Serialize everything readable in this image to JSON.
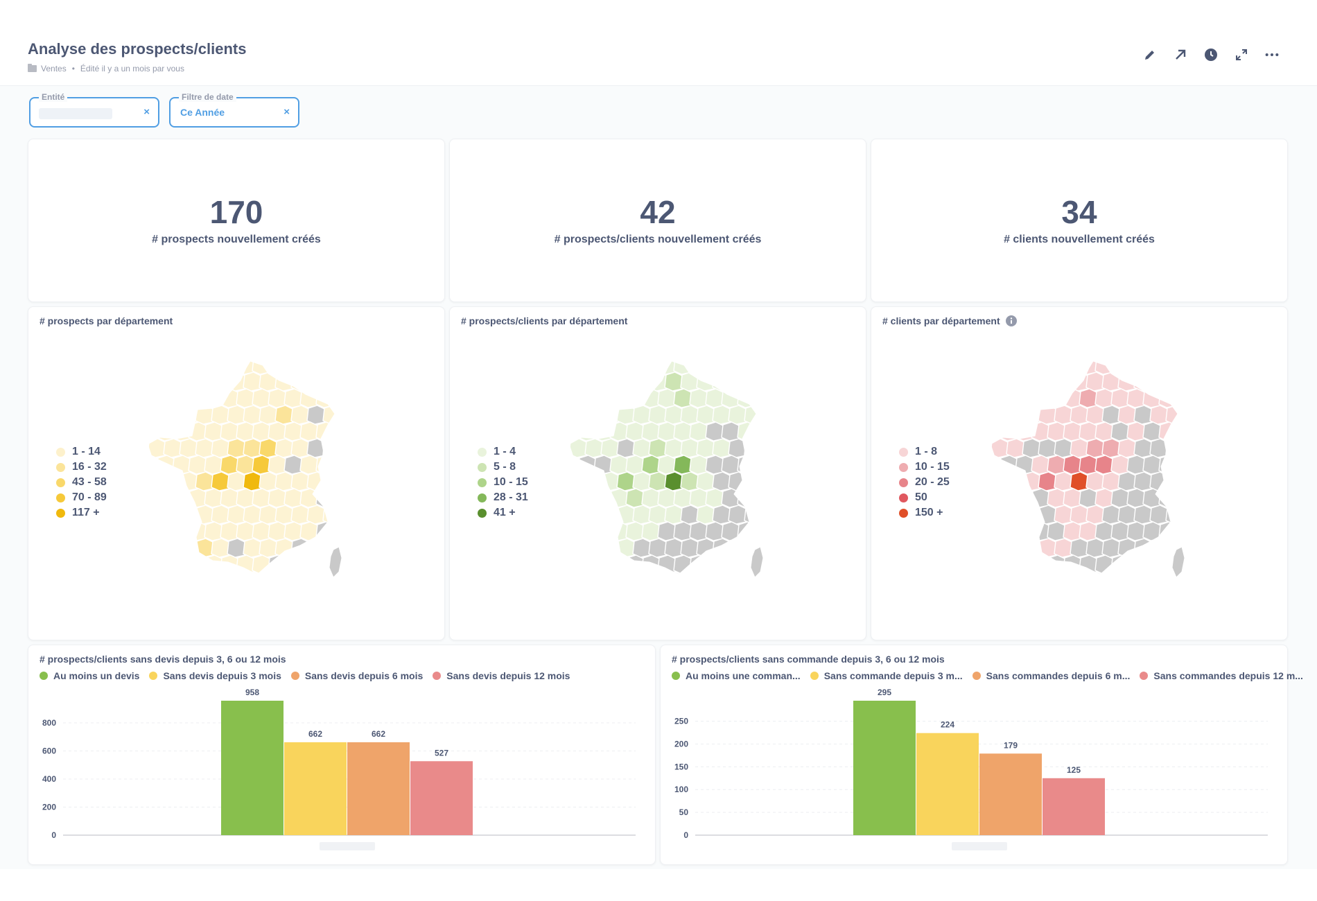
{
  "header": {
    "title": "Analyse des prospects/clients",
    "collection": "Ventes",
    "edited": "Édité il y a un mois par vous"
  },
  "toolbar": {
    "icons": [
      "pencil-icon",
      "share-arrow-icon",
      "clock-icon",
      "fullscreen-icon",
      "more-icon"
    ]
  },
  "filters": {
    "entity": {
      "label": "Entité",
      "value": ""
    },
    "date": {
      "label": "Filtre de date",
      "value": "Ce Année"
    }
  },
  "scalars": [
    {
      "value": "170",
      "label": "# prospects nouvellement créés"
    },
    {
      "value": "42",
      "label": "# prospects/clients nouvellement créés"
    },
    {
      "value": "34",
      "label": "# clients nouvellement créés"
    }
  ],
  "maps": [
    {
      "title": "# prospects par département",
      "legend": [
        {
          "label": "1 - 14",
          "color": "#fdf1cc"
        },
        {
          "label": "16 - 32",
          "color": "#fbe49a"
        },
        {
          "label": "43 - 58",
          "color": "#f9d86a"
        },
        {
          "label": "70 - 89",
          "color": "#f6c93a"
        },
        {
          "label": "117 +",
          "color": "#f0b90d"
        }
      ],
      "base_color": "#fdf3d3"
    },
    {
      "title": "# prospects/clients par département",
      "legend": [
        {
          "label": "1 - 4",
          "color": "#e9f3dc"
        },
        {
          "label": "5 - 8",
          "color": "#cde4b3"
        },
        {
          "label": "10 - 15",
          "color": "#aed48a"
        },
        {
          "label": "28 - 31",
          "color": "#84b85a"
        },
        {
          "label": "41 +",
          "color": "#5a8f2e"
        }
      ],
      "base_color": "#e9f3dc"
    },
    {
      "title": "# clients par département",
      "legend": [
        {
          "label": "1 - 8",
          "color": "#f7d5d6"
        },
        {
          "label": "10 - 15",
          "color": "#eeacb0"
        },
        {
          "label": "20 - 25",
          "color": "#e7848a"
        },
        {
          "label": "50",
          "color": "#e0585f"
        },
        {
          "label": "150 +",
          "color": "#e04f28"
        }
      ],
      "base_color": "#f7d5d6"
    }
  ],
  "chart_data": [
    {
      "type": "bar",
      "title": "# prospects/clients sans devis depuis 3, 6 ou 12 mois",
      "series": [
        {
          "name": "Au moins un devis",
          "color": "#88bf4d",
          "value": 958
        },
        {
          "name": "Sans devis depuis 3 mois",
          "color": "#f9d45c",
          "value": 662
        },
        {
          "name": "Sans devis depuis 6 mois",
          "color": "#efa46a",
          "value": 662
        },
        {
          "name": "Sans devis depuis 12 mois",
          "color": "#e98a8a",
          "value": 527
        }
      ],
      "ylim": [
        0,
        958
      ],
      "yticks": [
        0,
        200,
        400,
        600,
        800
      ],
      "grid": true,
      "legend_position": "top-left"
    },
    {
      "type": "bar",
      "title": "# prospects/clients sans commande depuis 3, 6 ou 12 mois",
      "series": [
        {
          "name": "Au moins une comman...",
          "color": "#88bf4d",
          "value": 295
        },
        {
          "name": "Sans commande depuis 3 m...",
          "color": "#f9d45c",
          "value": 224
        },
        {
          "name": "Sans commandes depuis 6 m...",
          "color": "#efa46a",
          "value": 179
        },
        {
          "name": "Sans commandes depuis 12 m...",
          "color": "#e98a8a",
          "value": 125
        }
      ],
      "ylim": [
        0,
        295
      ],
      "yticks": [
        0,
        50,
        100,
        150,
        200,
        250
      ],
      "grid": true,
      "legend_position": "top-left"
    }
  ]
}
